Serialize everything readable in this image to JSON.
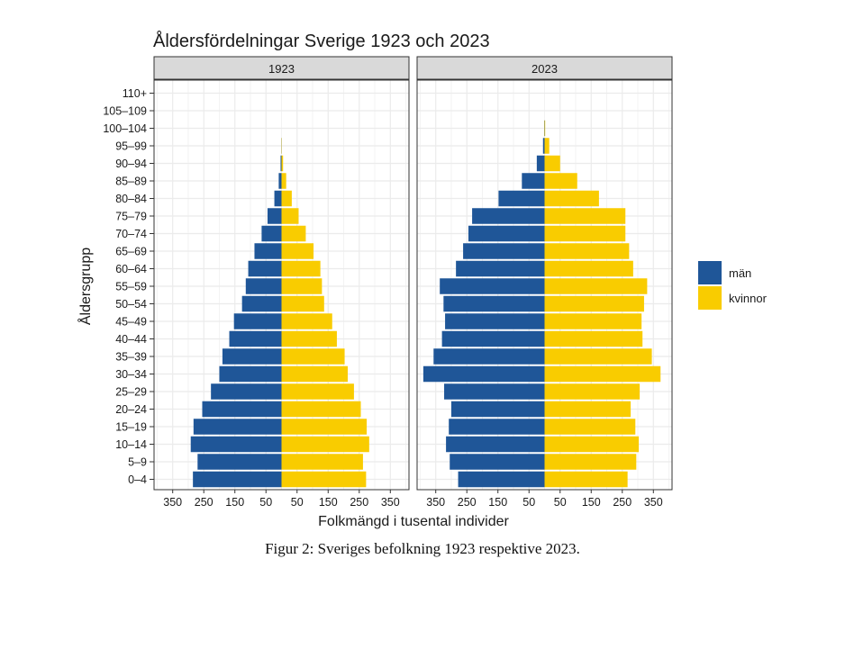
{
  "caption": "Figur 2: Sveriges befolkning 1923 respektive 2023.",
  "chart_data": {
    "type": "bar",
    "title": "Åldersfördelningar Sverige 1923 och 2023",
    "xlabel": "Folkmängd i tusental individer",
    "ylabel": "Åldersgrupp",
    "xlim": [
      -410,
      410
    ],
    "x_tick_values": [
      -350,
      -250,
      -150,
      -50,
      50,
      150,
      250,
      350
    ],
    "x_tick_labels": [
      "350",
      "250",
      "150",
      "50",
      "50",
      "150",
      "250",
      "350"
    ],
    "grid": true,
    "legend_position": "right",
    "colors": {
      "män": "#1f5698",
      "kvinnor": "#f9cc00",
      "strip": "#d9d9d9",
      "grid": "#ebebeb"
    },
    "categories": [
      "0–4",
      "5–9",
      "10–14",
      "15–19",
      "20–24",
      "25–29",
      "30–34",
      "35–39",
      "40–44",
      "45–49",
      "50–54",
      "55–59",
      "60–64",
      "65–69",
      "70–74",
      "75–79",
      "80–84",
      "85–89",
      "90–94",
      "95–99",
      "100–104",
      "105–109",
      "110+"
    ],
    "legend": [
      "män",
      "kvinnor"
    ],
    "panels": [
      {
        "label": "1923",
        "series": [
          {
            "name": "män",
            "values": [
              285,
              270,
              292,
              283,
              255,
              227,
              200,
              190,
              168,
              153,
              127,
              115,
              107,
              87,
              64,
              45,
              23,
              9,
              3,
              0.5,
              0,
              0,
              0
            ]
          },
          {
            "name": "kvinnor",
            "values": [
              272,
              262,
              282,
              274,
              255,
              233,
              213,
              203,
              178,
              163,
              137,
              130,
              125,
              103,
              78,
              55,
              33,
              15,
              5,
              1,
              0,
              0,
              0
            ]
          }
        ]
      },
      {
        "label": "2023",
        "series": [
          {
            "name": "män",
            "values": [
              278,
              305,
              317,
              308,
              300,
              323,
              390,
              357,
              330,
              320,
              325,
              337,
              285,
              262,
              245,
              233,
              148,
              73,
              25,
              5,
              1,
              0,
              0
            ]
          },
          {
            "name": "kvinnor",
            "values": [
              267,
              295,
              303,
              292,
              277,
              306,
              373,
              345,
              315,
              312,
              320,
              330,
              285,
              272,
              260,
              260,
              175,
              105,
              50,
              15,
              2,
              0,
              0
            ]
          }
        ]
      }
    ]
  }
}
